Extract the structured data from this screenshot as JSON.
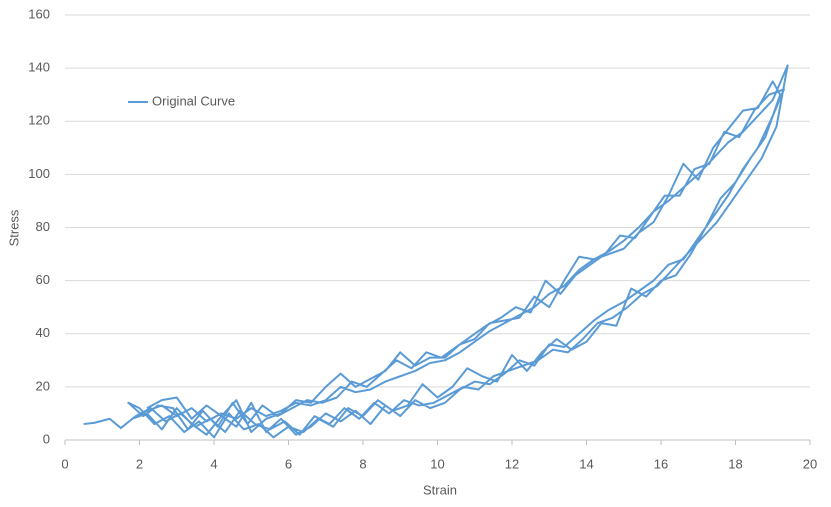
{
  "chart_data": {
    "type": "line",
    "xlabel": "Strain",
    "ylabel": "Stress",
    "xlim": [
      0,
      20
    ],
    "xticks": [
      0,
      2,
      4,
      6,
      8,
      10,
      12,
      14,
      16,
      18,
      20
    ],
    "ylim": [
      0,
      160
    ],
    "yticks": [
      0,
      20,
      40,
      60,
      80,
      100,
      120,
      140,
      160
    ],
    "grid": true,
    "legend": "upper left",
    "series": [
      {
        "name": "Original Curve",
        "color": "#5b9bd5",
        "x": [
          0.5,
          0.8,
          1.2,
          1.5,
          1.9,
          2.3,
          2.7,
          3.1,
          3.5,
          3.9,
          4.3,
          4.7,
          5.1,
          5.5,
          5.9,
          6.3,
          6.7,
          7.1,
          7.5,
          7.9,
          8.3,
          8.7,
          9.1,
          9.5,
          9.9,
          10.3,
          10.7,
          11.1,
          11.5,
          11.9,
          12.3,
          12.7,
          13.1,
          13.5,
          13.9,
          14.3,
          14.7,
          15.1,
          15.5,
          15.9,
          16.3,
          16.7,
          17.1,
          17.5,
          17.9,
          18.3,
          18.7,
          19.1,
          19.4,
          19.0,
          18.6,
          18.2,
          17.8,
          17.4,
          17.0,
          16.6,
          16.2,
          15.8,
          15.4,
          15.0,
          14.6,
          14.2,
          13.8,
          13.4,
          13.0,
          12.6,
          12.2,
          11.8,
          11.4,
          11.0,
          10.6,
          10.2,
          9.8,
          9.4,
          9.0,
          8.6,
          8.2,
          7.8,
          7.4,
          7.0,
          6.6,
          6.2,
          5.8,
          5.4,
          5.0,
          4.6,
          4.2,
          3.8,
          3.4,
          3.0,
          2.6,
          2.2,
          1.8,
          2.2,
          2.6,
          3.0,
          3.4,
          3.8,
          4.2,
          4.6,
          5.0,
          5.4,
          5.8,
          6.2,
          6.6,
          7.0,
          7.4,
          7.8,
          8.2,
          8.6,
          9.0,
          9.4,
          9.8,
          10.2,
          10.6,
          11.0,
          11.4,
          11.8,
          12.2,
          12.6,
          13.0,
          13.4,
          13.8,
          14.2,
          14.6,
          15.0,
          15.4,
          15.8,
          16.2,
          16.6,
          17.0,
          17.4,
          17.8,
          18.2,
          18.6,
          19.0,
          19.3,
          18.9,
          18.5,
          18.1,
          17.7,
          17.3,
          16.9,
          16.5,
          16.1,
          15.7,
          15.3,
          14.9,
          14.5,
          14.1,
          13.7,
          13.3,
          12.9,
          12.5,
          12.1,
          11.7,
          11.3,
          10.9,
          10.5,
          10.1,
          9.7,
          9.3,
          8.9,
          8.5,
          8.1,
          7.7,
          7.3,
          6.9,
          6.5,
          6.1,
          5.7,
          5.3,
          4.9,
          4.5,
          4.1,
          3.7,
          3.3,
          2.9,
          2.5,
          2.1,
          1.7,
          2.0,
          2.4,
          2.8,
          3.2,
          3.6,
          4.0,
          4.4,
          4.8,
          5.2,
          5.6,
          6.0,
          6.4,
          6.8,
          7.2,
          7.6,
          8.0,
          8.4,
          8.8,
          9.2,
          9.6,
          10.0,
          10.4,
          10.8,
          11.2,
          11.6,
          12.0,
          12.4,
          12.8,
          13.2,
          13.6,
          14.0,
          14.4,
          14.8,
          15.2,
          15.6,
          16.0,
          16.4,
          16.8,
          17.2,
          17.6,
          18.0,
          18.4,
          18.8,
          19.2,
          19.0,
          18.6,
          18.2,
          17.8,
          17.4,
          17.0,
          16.6,
          16.2,
          15.8,
          15.4,
          15.0,
          14.6,
          14.2,
          13.8,
          13.4,
          13.0,
          12.6,
          12.2,
          11.8,
          11.4,
          11.0,
          10.6,
          10.2,
          9.8,
          9.4,
          9.0,
          8.6,
          8.2,
          7.8,
          7.4,
          7.0,
          6.6,
          6.2,
          5.8,
          5.4,
          5.0,
          4.6,
          4.2,
          3.8,
          3.4,
          3.0,
          2.6,
          2.2
        ],
        "values": [
          6,
          6.5,
          8,
          4.5,
          9,
          12,
          7,
          10,
          5,
          8,
          3,
          11,
          6,
          4,
          7,
          2,
          9,
          6,
          12,
          8,
          14,
          10,
          15,
          13,
          14,
          17,
          20,
          19,
          24,
          26,
          28,
          30,
          34,
          33,
          38,
          44,
          46,
          50,
          55,
          58,
          64,
          70,
          76,
          82,
          90,
          98,
          106,
          118,
          141,
          128,
          122,
          116,
          112,
          106,
          100,
          95,
          90,
          86,
          80,
          75,
          71,
          68,
          64,
          58,
          55,
          50,
          47,
          44,
          41,
          37,
          33,
          30,
          29,
          26,
          24,
          22,
          19,
          18,
          20,
          15,
          13,
          14,
          11,
          9,
          12,
          8,
          10,
          7,
          12,
          9,
          13,
          11,
          8,
          10,
          4,
          12,
          6,
          2,
          9,
          5,
          14,
          3,
          8,
          2,
          5,
          10,
          7,
          11,
          6,
          13,
          9,
          15,
          12,
          14,
          19,
          22,
          21,
          25,
          30,
          28,
          36,
          35,
          40,
          45,
          49,
          52,
          56,
          60,
          66,
          68,
          76,
          84,
          92,
          102,
          110,
          122,
          132,
          130,
          124,
          114,
          116,
          104,
          102,
          92,
          92,
          84,
          76,
          77,
          70,
          66,
          62,
          55,
          60,
          48,
          50,
          46,
          43,
          39,
          35,
          31,
          33,
          27,
          30,
          25,
          20,
          22,
          16,
          14,
          15,
          12,
          9,
          13,
          6,
          14,
          5,
          11,
          4,
          12,
          13,
          9,
          14,
          12,
          6,
          9,
          3,
          7,
          1,
          10,
          4,
          6,
          1,
          5,
          3,
          8,
          5,
          12,
          9,
          15,
          11,
          13,
          21,
          16,
          20,
          27,
          24,
          22,
          32,
          26,
          33,
          38,
          34,
          37,
          44,
          43,
          57,
          54,
          60,
          62,
          70,
          80,
          91,
          97,
          106,
          114,
          130,
          135,
          125,
          124,
          117,
          110,
          98,
          104,
          92,
          82,
          78,
          72,
          70,
          68,
          69,
          60,
          50,
          54,
          46,
          45,
          44,
          38,
          36,
          31,
          31,
          28,
          33,
          26,
          23,
          20,
          25,
          20,
          14,
          15,
          10,
          8,
          3,
          15,
          9,
          13,
          8,
          16,
          15,
          12
        ]
      }
    ]
  }
}
